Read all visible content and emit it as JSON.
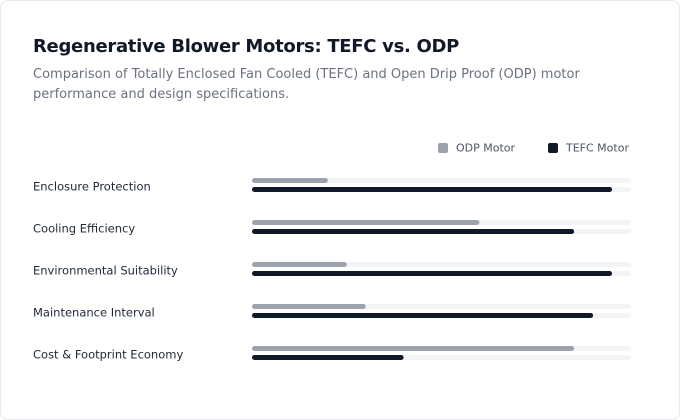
{
  "chart_data": {
    "type": "bar",
    "orientation": "horizontal",
    "title": "Regenerative Blower Motors: TEFC vs. ODP",
    "subtitle": "Comparison of Totally Enclosed Fan Cooled (TEFC) and Open Drip Proof (ODP) motor performance and design specifications.",
    "categories": [
      "Enclosure Protection",
      "Cooling Efficiency",
      "Environmental Suitability",
      "Maintenance Interval",
      "Cost & Footprint Economy"
    ],
    "series": [
      {
        "name": "ODP Motor",
        "color": "#9ca3af",
        "values": [
          20,
          60,
          25,
          30,
          85
        ]
      },
      {
        "name": "TEFC Motor",
        "color": "#111827",
        "values": [
          95,
          85,
          95,
          90,
          40
        ]
      }
    ],
    "xlim": [
      0,
      100
    ],
    "legend": "top-right"
  }
}
